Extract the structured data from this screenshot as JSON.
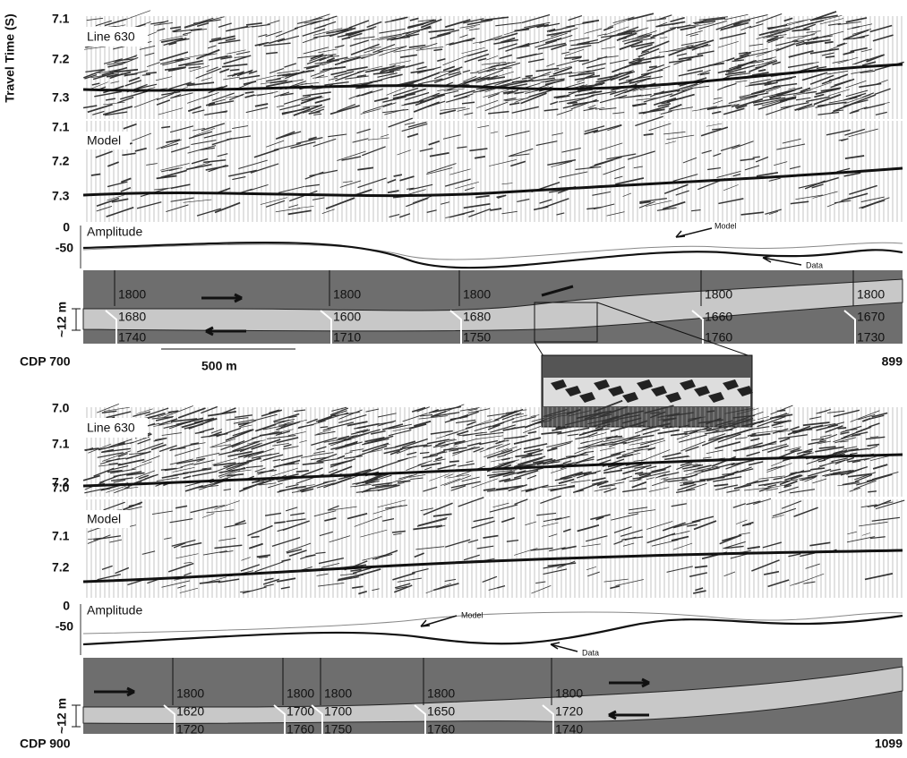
{
  "y_axis_title": "Travel Time (S)",
  "top": {
    "line_panel": {
      "label": "Line 630",
      "ticks": [
        "7.1",
        "7.2",
        "7.3"
      ]
    },
    "model_panel": {
      "label": "Model",
      "ticks": [
        "7.1",
        "7.2",
        "7.3"
      ]
    },
    "amplitude": {
      "label": "Amplitude",
      "ticks": [
        "0",
        "-50"
      ],
      "model_note": "Model",
      "data_note": "Data"
    },
    "velocity_model": {
      "thickness": "~12 m",
      "blocks": [
        {
          "top": "1800",
          "middle": "1680",
          "bottom": "1740"
        },
        {
          "top": "1800",
          "middle": "1600",
          "bottom": "1710"
        },
        {
          "top": "1800",
          "middle": "1680",
          "bottom": "1750"
        },
        {
          "top": "1800",
          "middle": "1660",
          "bottom": "1760"
        },
        {
          "top": "1800",
          "middle": "1670",
          "bottom": "1730"
        }
      ]
    },
    "cdp_start": "CDP 700",
    "cdp_end": "899",
    "scale": "500 m"
  },
  "bottom": {
    "line_panel": {
      "label": "Line 630",
      "ticks": [
        "7.0",
        "7.1",
        "7.2"
      ]
    },
    "model_panel": {
      "label": "Model",
      "ticks": [
        "7.0",
        "7.1",
        "7.2"
      ]
    },
    "amplitude": {
      "label": "Amplitude",
      "ticks": [
        "0",
        "-50"
      ],
      "model_note": "Model",
      "data_note": "Data"
    },
    "velocity_model": {
      "thickness": "~12 m",
      "blocks": [
        {
          "top": "1800",
          "middle": "1620",
          "bottom": "1720"
        },
        {
          "top": "1800",
          "middle": "1700",
          "bottom": "1760"
        },
        {
          "top": "1800",
          "middle": "1700",
          "bottom": "1750"
        },
        {
          "top": "1800",
          "middle": "1650",
          "bottom": "1760"
        },
        {
          "top": "1800",
          "middle": "1720",
          "bottom": "1740"
        }
      ]
    },
    "cdp_start": "CDP 900",
    "cdp_end": "1099"
  }
}
